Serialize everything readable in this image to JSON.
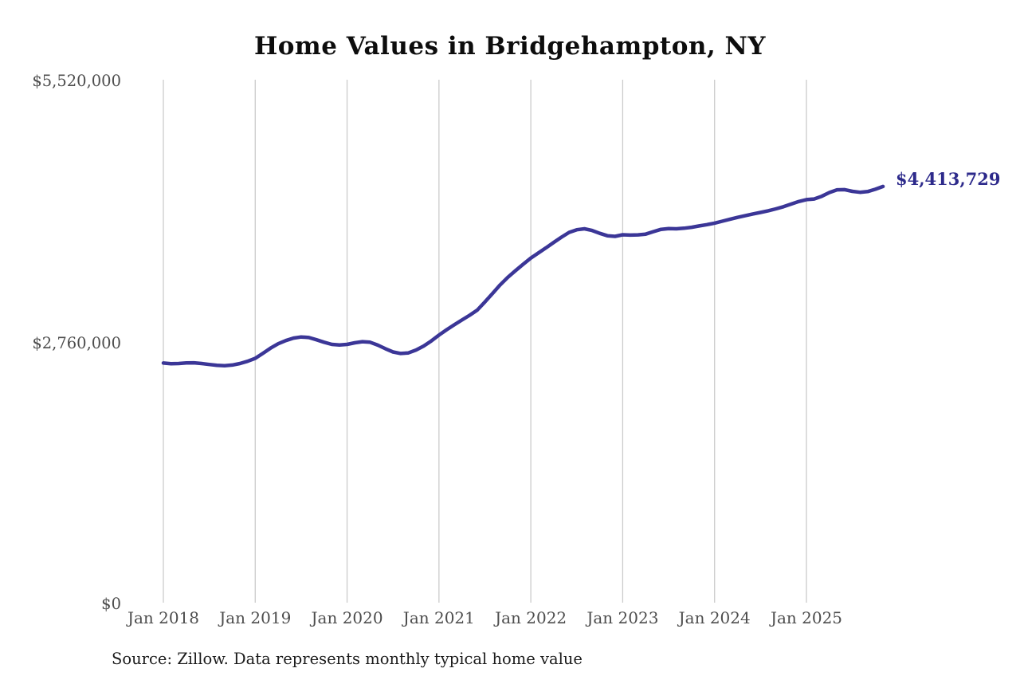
{
  "title": "Home Values in Bridgehampton, NY",
  "source_note": "Source: Zillow. Data represents monthly typical home value",
  "colors": {
    "background": "#ffffff",
    "title_text": "#0d0d0d",
    "axis_text": "#4d4d4d",
    "gridline": "#cbcbcb",
    "line": "#3b3697",
    "end_label_text": "#2d2a8b",
    "source_text": "#1c1c1c"
  },
  "y_axis": {
    "ticks": [
      {
        "label": "$5,520,000",
        "value": 5520000
      },
      {
        "label": "$2,760,000",
        "value": 2760000
      },
      {
        "label": "$0",
        "value": 0
      }
    ]
  },
  "x_axis": {
    "tick_labels": [
      "Jan 2018",
      "Jan 2019",
      "Jan 2020",
      "Jan 2021",
      "Jan 2022",
      "Jan 2023",
      "Jan 2024",
      "Jan 2025"
    ]
  },
  "end_label": "$4,413,729",
  "chart_data": {
    "type": "line",
    "title": "Home Values in Bridgehampton, NY",
    "series_name": "Monthly typical home value",
    "x_start": "2018-01",
    "x_end": "2025-11",
    "x_interval": "month",
    "x_tick_labels": [
      "Jan 2018",
      "Jan 2019",
      "Jan 2020",
      "Jan 2021",
      "Jan 2022",
      "Jan 2023",
      "Jan 2024",
      "Jan 2025"
    ],
    "ylim": [
      0,
      5520000
    ],
    "y_tick_values": [
      0,
      2760000,
      5520000
    ],
    "grid": "vertical-only",
    "legend": "none",
    "end_value": 4413729,
    "end_value_label": "$4,413,729",
    "values": [
      2555000,
      2548000,
      2550000,
      2556000,
      2558000,
      2550000,
      2540000,
      2532000,
      2528000,
      2534000,
      2550000,
      2574000,
      2605000,
      2658000,
      2712000,
      2758000,
      2792000,
      2818000,
      2830000,
      2824000,
      2800000,
      2774000,
      2752000,
      2746000,
      2752000,
      2768000,
      2780000,
      2774000,
      2744000,
      2706000,
      2672000,
      2656000,
      2662000,
      2692000,
      2734000,
      2788000,
      2850000,
      2906000,
      2958000,
      3008000,
      3058000,
      3112000,
      3198000,
      3288000,
      3378000,
      3458000,
      3528000,
      3595000,
      3660000,
      3715000,
      3768000,
      3825000,
      3880000,
      3930000,
      3958000,
      3968000,
      3950000,
      3920000,
      3895000,
      3888000,
      3905000,
      3902000,
      3904000,
      3912000,
      3938000,
      3962000,
      3970000,
      3968000,
      3974000,
      3984000,
      3998000,
      4012000,
      4028000,
      4048000,
      4068000,
      4088000,
      4106000,
      4124000,
      4140000,
      4158000,
      4178000,
      4200000,
      4228000,
      4255000,
      4275000,
      4282000,
      4310000,
      4350000,
      4378000,
      4380000,
      4362000,
      4352000,
      4360000,
      4384000,
      4413729
    ]
  }
}
